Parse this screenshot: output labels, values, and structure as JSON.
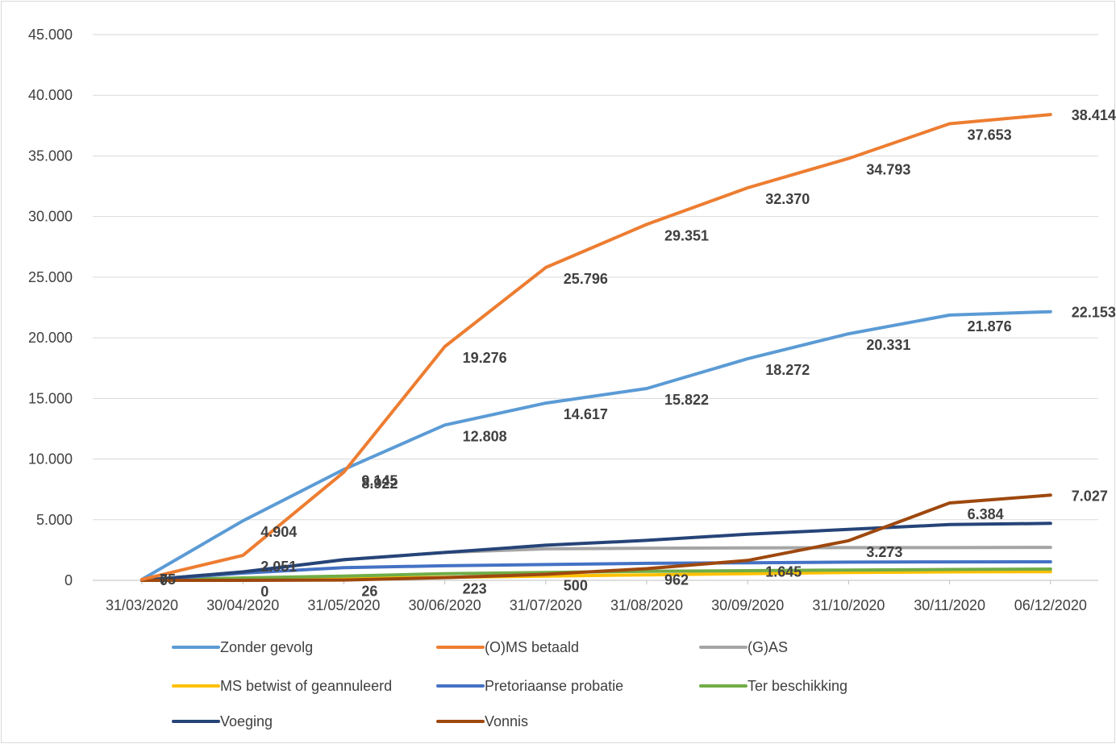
{
  "chart_data": {
    "type": "line",
    "title": "",
    "xlabel": "",
    "ylabel": "",
    "ylim": [
      0,
      45000
    ],
    "yticks": [
      0,
      5000,
      10000,
      15000,
      20000,
      25000,
      30000,
      35000,
      40000,
      45000
    ],
    "ytick_labels": [
      "0",
      "5.000",
      "10.000",
      "15.000",
      "20.000",
      "25.000",
      "30.000",
      "35.000",
      "40.000",
      "45.000"
    ],
    "categories": [
      "31/03/2020",
      "30/04/2020",
      "31/05/2020",
      "30/06/2020",
      "31/07/2020",
      "31/08/2020",
      "30/09/2020",
      "31/10/2020",
      "30/11/2020",
      "06/12/2020"
    ],
    "grid": true,
    "legend_position": "bottom",
    "series": [
      {
        "name": "Zonder gevolg",
        "color": "#5B9BD5",
        "values": [
          75,
          4904,
          9145,
          12808,
          14617,
          15822,
          18272,
          20331,
          21876,
          22153
        ],
        "labels": [
          "75",
          "4.904",
          "9.145",
          "12.808",
          "14.617",
          "15.822",
          "18.272",
          "20.331",
          "21.876",
          "22.153"
        ]
      },
      {
        "name": "(O)MS betaald",
        "color": "#ED7D31",
        "values": [
          75,
          2051,
          8922,
          19276,
          25796,
          29351,
          32370,
          34793,
          37653,
          38414
        ],
        "labels": [
          "",
          "2.051",
          "8.922",
          "19.276",
          "25.796",
          "29.351",
          "32.370",
          "34.793",
          "37.653",
          "38.414"
        ]
      },
      {
        "name": "(G)AS",
        "color": "#A5A5A5",
        "values": [
          0,
          700,
          1700,
          2300,
          2600,
          2650,
          2680,
          2700,
          2700,
          2720
        ],
        "labels": []
      },
      {
        "name": "MS betwist of geannuleerd",
        "color": "#FFC000",
        "values": [
          0,
          50,
          150,
          250,
          350,
          450,
          550,
          650,
          700,
          720
        ],
        "labels": []
      },
      {
        "name": "Pretoriaanse probatie",
        "color": "#4472C4",
        "values": [
          0,
          600,
          1050,
          1200,
          1300,
          1400,
          1450,
          1500,
          1520,
          1530
        ],
        "labels": []
      },
      {
        "name": "Ter beschikking",
        "color": "#70AD47",
        "values": [
          0,
          200,
          350,
          550,
          650,
          750,
          800,
          850,
          900,
          930
        ],
        "labels": []
      },
      {
        "name": "Voeging",
        "color": "#264478",
        "values": [
          0,
          700,
          1700,
          2300,
          2900,
          3300,
          3800,
          4200,
          4600,
          4700
        ],
        "labels": []
      },
      {
        "name": "Vonnis",
        "color": "#9E480E",
        "values": [
          0,
          0,
          26,
          223,
          500,
          962,
          1645,
          3273,
          6384,
          7027
        ],
        "labels": [
          "0",
          "0",
          "26",
          "223",
          "500",
          "962",
          "1.645",
          "3.273",
          "6.384",
          "7.027"
        ]
      }
    ]
  }
}
